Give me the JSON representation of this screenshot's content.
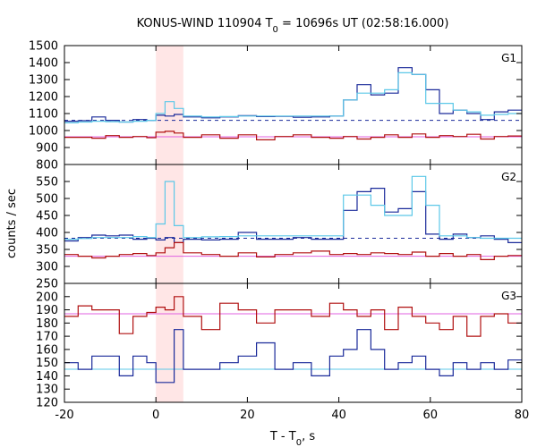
{
  "chart_data": {
    "type": "line",
    "title_prefix": "KONUS-WIND 110904 T",
    "title_sub": "0",
    "title_suffix": " = 10696s UT (02:58:16.000)",
    "xlabel_prefix": "T - T",
    "xlabel_sub": "0",
    "xlabel_suffix": ", s",
    "ylabel": "counts / sec",
    "xlim": [
      -20,
      80
    ],
    "xticks": [
      -20,
      0,
      20,
      40,
      60,
      80
    ],
    "highlight_band": [
      0,
      6
    ],
    "grid": false,
    "colors": {
      "red_series": "#b01010",
      "blue_series": "#1a2a9a",
      "cyan_fit": "#5cc8e8",
      "magenta_fit": "#e060e0",
      "band": "#ffe6e6",
      "dashed_baseline": "#1a2a9a"
    },
    "panels": [
      {
        "label": "G1",
        "ylim": [
          800,
          1500
        ],
        "yticks": [
          800,
          900,
          1000,
          1100,
          1200,
          1300,
          1400,
          1500
        ],
        "dashed_baseline": 1060,
        "magenta_level": 963,
        "series": [
          {
            "x": [
              -20,
              -17,
              -14,
              -11,
              -8,
              -5,
              -2,
              0,
              2,
              4,
              6,
              10,
              14,
              18,
              22,
              26,
              30,
              34,
              38,
              41,
              44,
              47,
              50,
              53,
              56,
              59,
              62,
              65,
              68,
              71,
              74,
              77,
              80
            ],
            "values": [
              1055,
              1058,
              1080,
              1060,
              1050,
              1065,
              1060,
              1090,
              1085,
              1095,
              1080,
              1075,
              1080,
              1088,
              1082,
              1083,
              1078,
              1080,
              1085,
              1180,
              1270,
              1210,
              1220,
              1370,
              1330,
              1240,
              1100,
              1120,
              1100,
              1065,
              1110,
              1120,
              1115
            ]
          },
          {
            "x": [
              -20,
              -17,
              -14,
              -11,
              -8,
              -5,
              -2,
              0,
              2,
              4,
              6,
              10,
              14,
              18,
              22,
              26,
              30,
              34,
              38,
              41,
              44,
              47,
              50,
              53,
              56,
              59,
              62,
              65,
              68,
              71,
              74,
              77,
              80
            ],
            "values": [
              1045,
              1050,
              1055,
              1052,
              1050,
              1055,
              1060,
              1100,
              1170,
              1130,
              1085,
              1080,
              1082,
              1085,
              1085,
              1085,
              1085,
              1085,
              1085,
              1180,
              1220,
              1220,
              1240,
              1340,
              1330,
              1160,
              1160,
              1120,
              1110,
              1090,
              1095,
              1100,
              1100
            ]
          },
          {
            "x": [
              -20,
              -17,
              -14,
              -11,
              -8,
              -5,
              -2,
              0,
              2,
              4,
              6,
              10,
              14,
              18,
              22,
              26,
              30,
              34,
              38,
              41,
              44,
              47,
              50,
              53,
              56,
              59,
              62,
              65,
              68,
              71,
              74,
              77,
              80
            ],
            "values": [
              960,
              960,
              955,
              970,
              960,
              965,
              958,
              990,
              995,
              985,
              960,
              975,
              955,
              975,
              945,
              965,
              975,
              960,
              955,
              965,
              950,
              960,
              975,
              960,
              980,
              960,
              970,
              965,
              978,
              950,
              965,
              968,
              972
            ]
          }
        ]
      },
      {
        "label": "G2",
        "ylim": [
          250,
          600
        ],
        "yticks": [
          250,
          300,
          350,
          400,
          450,
          500,
          550
        ],
        "dashed_baseline": 383,
        "magenta_level": 330,
        "series": [
          {
            "x": [
              -20,
              -17,
              -14,
              -11,
              -8,
              -5,
              -2,
              0,
              2,
              4,
              6,
              10,
              14,
              18,
              22,
              26,
              30,
              34,
              38,
              41,
              44,
              47,
              50,
              53,
              56,
              59,
              62,
              65,
              68,
              71,
              74,
              77,
              80
            ],
            "values": [
              375,
              385,
              392,
              390,
              392,
              380,
              383,
              378,
              385,
              370,
              380,
              378,
              380,
              400,
              380,
              380,
              385,
              380,
              380,
              465,
              520,
              530,
              460,
              470,
              520,
              395,
              380,
              395,
              385,
              390,
              380,
              370,
              390
            ]
          },
          {
            "x": [
              -20,
              -17,
              -14,
              -11,
              -8,
              -5,
              -2,
              0,
              2,
              4,
              6,
              10,
              14,
              18,
              22,
              26,
              30,
              34,
              38,
              41,
              44,
              47,
              50,
              53,
              56,
              59,
              62,
              65,
              68,
              71,
              74,
              77,
              80
            ],
            "values": [
              380,
              382,
              385,
              385,
              385,
              388,
              385,
              425,
              550,
              420,
              385,
              387,
              388,
              390,
              390,
              390,
              390,
              390,
              390,
              510,
              510,
              480,
              450,
              450,
              565,
              480,
              390,
              390,
              385,
              383,
              383,
              383,
              383
            ]
          },
          {
            "x": [
              -20,
              -17,
              -14,
              -11,
              -8,
              -5,
              -2,
              0,
              2,
              4,
              6,
              10,
              14,
              18,
              22,
              26,
              30,
              34,
              38,
              41,
              44,
              47,
              50,
              53,
              56,
              59,
              62,
              65,
              68,
              71,
              74,
              77,
              80
            ],
            "values": [
              335,
              330,
              325,
              330,
              335,
              338,
              332,
              340,
              355,
              370,
              340,
              335,
              330,
              340,
              328,
              335,
              340,
              345,
              335,
              338,
              335,
              340,
              338,
              335,
              342,
              330,
              338,
              330,
              335,
              320,
              330,
              332,
              330
            ]
          }
        ]
      },
      {
        "label": "G3",
        "ylim": [
          120,
          210
        ],
        "yticks": [
          120,
          130,
          140,
          150,
          160,
          170,
          180,
          190,
          200
        ],
        "magenta_level": 187,
        "cyan_level": 145,
        "series": [
          {
            "x": [
              -20,
              -17,
              -14,
              -11,
              -8,
              -5,
              -2,
              0,
              2,
              4,
              6,
              10,
              14,
              18,
              22,
              26,
              30,
              34,
              38,
              41,
              44,
              47,
              50,
              53,
              56,
              59,
              62,
              65,
              68,
              71,
              74,
              77,
              80
            ],
            "values": [
              150,
              145,
              155,
              155,
              140,
              155,
              150,
              135,
              135,
              175,
              145,
              145,
              150,
              155,
              165,
              145,
              150,
              140,
              155,
              160,
              175,
              160,
              145,
              150,
              155,
              145,
              140,
              150,
              145,
              150,
              145,
              152,
              155
            ]
          },
          {
            "x": [
              -20,
              -17,
              -14,
              -11,
              -8,
              -5,
              -2,
              0,
              2,
              4,
              6,
              10,
              14,
              18,
              22,
              26,
              30,
              34,
              38,
              41,
              44,
              47,
              50,
              53,
              56,
              59,
              62,
              65,
              68,
              71,
              74,
              77,
              80
            ],
            "values": [
              185,
              193,
              190,
              190,
              172,
              185,
              188,
              192,
              190,
              200,
              185,
              175,
              195,
              190,
              180,
              190,
              190,
              185,
              195,
              190,
              185,
              190,
              175,
              192,
              185,
              180,
              175,
              185,
              170,
              185,
              187,
              180,
              185
            ]
          }
        ]
      }
    ]
  }
}
